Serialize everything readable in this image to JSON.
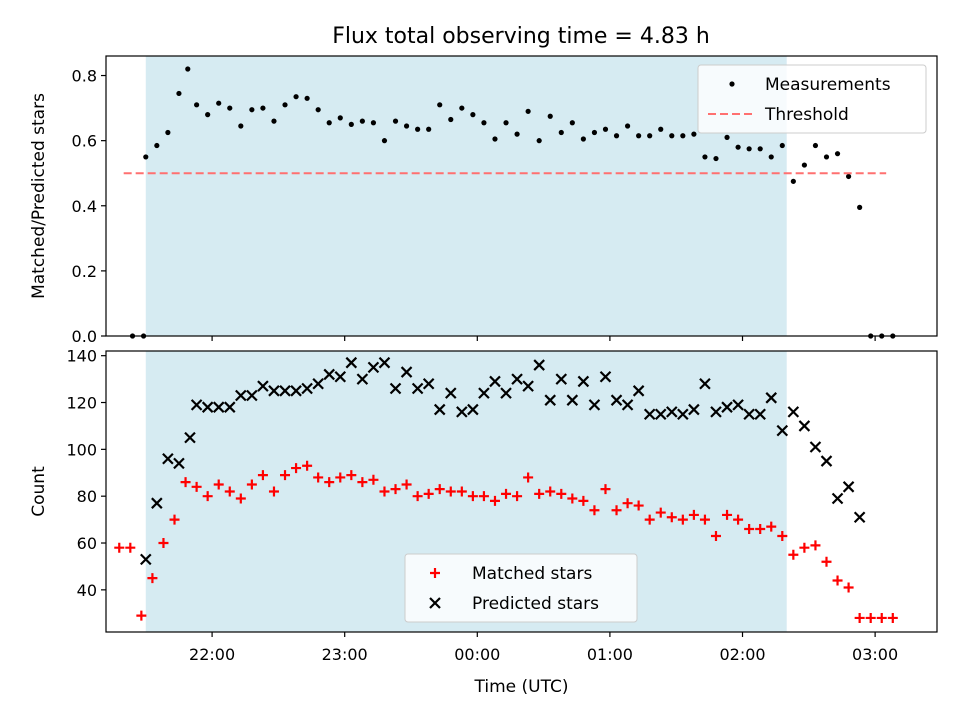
{
  "title": "Flux total observing time = 4.83 h",
  "chart_data": [
    {
      "type": "scatter",
      "panel": "top",
      "ylabel": "Matched/Predicted stars",
      "xlabel": "",
      "x_unit": "time UTC (HH:MM)",
      "xlim": [
        "21:12",
        "03:28"
      ],
      "ylim": [
        0,
        0.86
      ],
      "yticks": [
        0.0,
        0.2,
        0.4,
        0.6,
        0.8
      ],
      "ytick_labels": [
        "0.0",
        "0.2",
        "0.4",
        "0.6",
        "0.8"
      ],
      "xticks": [
        "22:00",
        "23:00",
        "00:00",
        "01:00",
        "02:00",
        "03:00"
      ],
      "shaded_interval": [
        "21:30",
        "02:20"
      ],
      "legend_position": "upper right",
      "series": [
        {
          "name": "Measurements",
          "marker": "dot",
          "color": "#000000",
          "points": [
            [
              "21:24",
              0.0
            ],
            [
              "21:29",
              0.0
            ],
            [
              "21:30",
              0.55
            ],
            [
              "21:35",
              0.585
            ],
            [
              "21:40",
              0.625
            ],
            [
              "21:45",
              0.745
            ],
            [
              "21:49",
              0.82
            ],
            [
              "21:53",
              0.71
            ],
            [
              "21:58",
              0.68
            ],
            [
              "22:03",
              0.715
            ],
            [
              "22:08",
              0.7
            ],
            [
              "22:13",
              0.645
            ],
            [
              "22:18",
              0.695
            ],
            [
              "22:23",
              0.7
            ],
            [
              "22:28",
              0.66
            ],
            [
              "22:33",
              0.71
            ],
            [
              "22:38",
              0.735
            ],
            [
              "22:43",
              0.73
            ],
            [
              "22:48",
              0.695
            ],
            [
              "22:53",
              0.655
            ],
            [
              "22:58",
              0.67
            ],
            [
              "23:03",
              0.65
            ],
            [
              "23:08",
              0.66
            ],
            [
              "23:13",
              0.655
            ],
            [
              "23:18",
              0.6
            ],
            [
              "23:23",
              0.66
            ],
            [
              "23:28",
              0.645
            ],
            [
              "23:33",
              0.635
            ],
            [
              "23:38",
              0.635
            ],
            [
              "23:43",
              0.71
            ],
            [
              "23:48",
              0.665
            ],
            [
              "23:53",
              0.7
            ],
            [
              "23:58",
              0.68
            ],
            [
              "00:03",
              0.655
            ],
            [
              "00:08",
              0.605
            ],
            [
              "00:13",
              0.655
            ],
            [
              "00:18",
              0.62
            ],
            [
              "00:23",
              0.69
            ],
            [
              "00:28",
              0.6
            ],
            [
              "00:33",
              0.675
            ],
            [
              "00:38",
              0.625
            ],
            [
              "00:43",
              0.655
            ],
            [
              "00:48",
              0.605
            ],
            [
              "00:53",
              0.625
            ],
            [
              "00:58",
              0.635
            ],
            [
              "01:03",
              0.615
            ],
            [
              "01:08",
              0.645
            ],
            [
              "01:13",
              0.615
            ],
            [
              "01:18",
              0.615
            ],
            [
              "01:23",
              0.635
            ],
            [
              "01:28",
              0.615
            ],
            [
              "01:33",
              0.615
            ],
            [
              "01:38",
              0.62
            ],
            [
              "01:43",
              0.55
            ],
            [
              "01:48",
              0.545
            ],
            [
              "01:53",
              0.61
            ],
            [
              "01:58",
              0.58
            ],
            [
              "02:03",
              0.575
            ],
            [
              "02:08",
              0.575
            ],
            [
              "02:13",
              0.55
            ],
            [
              "02:18",
              0.585
            ],
            [
              "02:23",
              0.475
            ],
            [
              "02:28",
              0.525
            ],
            [
              "02:33",
              0.585
            ],
            [
              "02:38",
              0.55
            ],
            [
              "02:43",
              0.56
            ],
            [
              "02:48",
              0.49
            ],
            [
              "02:53",
              0.395
            ],
            [
              "02:58",
              0.0
            ],
            [
              "03:03",
              0.0
            ],
            [
              "03:08",
              0.0
            ]
          ]
        },
        {
          "name": "Threshold",
          "style": "dashed",
          "color": "#ff7070",
          "points": [
            [
              "21:20",
              0.5
            ],
            [
              "03:05",
              0.5
            ]
          ]
        }
      ]
    },
    {
      "type": "scatter",
      "panel": "bottom",
      "ylabel": "Count",
      "xlabel": "Time (UTC)",
      "x_unit": "time UTC (HH:MM)",
      "xlim": [
        "21:12",
        "03:28"
      ],
      "ylim": [
        22,
        142
      ],
      "yticks": [
        40,
        60,
        80,
        100,
        120,
        140
      ],
      "ytick_labels": [
        "40",
        "60",
        "80",
        "100",
        "120",
        "140"
      ],
      "xticks": [
        "22:00",
        "23:00",
        "00:00",
        "01:00",
        "02:00",
        "03:00"
      ],
      "xtick_labels": [
        "22:00",
        "23:00",
        "00:00",
        "01:00",
        "02:00",
        "03:00"
      ],
      "shaded_interval": [
        "21:30",
        "02:20"
      ],
      "legend_position": "lower center",
      "series": [
        {
          "name": "Matched stars",
          "marker": "plus",
          "color": "#ff0000",
          "points": [
            [
              "21:18",
              58
            ],
            [
              "21:23",
              58
            ],
            [
              "21:28",
              29
            ],
            [
              "21:33",
              45
            ],
            [
              "21:38",
              60
            ],
            [
              "21:43",
              70
            ],
            [
              "21:48",
              86
            ],
            [
              "21:53",
              84
            ],
            [
              "21:58",
              80
            ],
            [
              "22:03",
              85
            ],
            [
              "22:08",
              82
            ],
            [
              "22:13",
              79
            ],
            [
              "22:18",
              85
            ],
            [
              "22:23",
              89
            ],
            [
              "22:28",
              82
            ],
            [
              "22:33",
              89
            ],
            [
              "22:38",
              92
            ],
            [
              "22:43",
              93
            ],
            [
              "22:48",
              88
            ],
            [
              "22:53",
              86
            ],
            [
              "22:58",
              88
            ],
            [
              "23:03",
              89
            ],
            [
              "23:08",
              86
            ],
            [
              "23:13",
              87
            ],
            [
              "23:18",
              82
            ],
            [
              "23:23",
              83
            ],
            [
              "23:28",
              85
            ],
            [
              "23:33",
              80
            ],
            [
              "23:38",
              81
            ],
            [
              "23:43",
              83
            ],
            [
              "23:48",
              82
            ],
            [
              "23:53",
              82
            ],
            [
              "23:58",
              80
            ],
            [
              "00:03",
              80
            ],
            [
              "00:08",
              78
            ],
            [
              "00:13",
              81
            ],
            [
              "00:18",
              80
            ],
            [
              "00:23",
              88
            ],
            [
              "00:28",
              81
            ],
            [
              "00:33",
              82
            ],
            [
              "00:38",
              81
            ],
            [
              "00:43",
              79
            ],
            [
              "00:48",
              78
            ],
            [
              "00:53",
              74
            ],
            [
              "00:58",
              83
            ],
            [
              "01:03",
              74
            ],
            [
              "01:08",
              77
            ],
            [
              "01:13",
              76
            ],
            [
              "01:18",
              70
            ],
            [
              "01:23",
              73
            ],
            [
              "01:28",
              71
            ],
            [
              "01:33",
              70
            ],
            [
              "01:38",
              72
            ],
            [
              "01:43",
              70
            ],
            [
              "01:48",
              63
            ],
            [
              "01:53",
              72
            ],
            [
              "01:58",
              70
            ],
            [
              "02:03",
              66
            ],
            [
              "02:08",
              66
            ],
            [
              "02:13",
              67
            ],
            [
              "02:18",
              63
            ],
            [
              "02:23",
              55
            ],
            [
              "02:28",
              58
            ],
            [
              "02:33",
              59
            ],
            [
              "02:38",
              52
            ],
            [
              "02:43",
              44
            ],
            [
              "02:48",
              41
            ],
            [
              "02:53",
              28
            ],
            [
              "02:58",
              28
            ],
            [
              "03:03",
              28
            ],
            [
              "03:08",
              28
            ]
          ]
        },
        {
          "name": "Predicted stars",
          "marker": "x",
          "color": "#000000",
          "points": [
            [
              "21:30",
              53
            ],
            [
              "21:35",
              77
            ],
            [
              "21:40",
              96
            ],
            [
              "21:45",
              94
            ],
            [
              "21:50",
              105
            ],
            [
              "21:53",
              119
            ],
            [
              "21:58",
              118
            ],
            [
              "22:03",
              118
            ],
            [
              "22:08",
              118
            ],
            [
              "22:13",
              123
            ],
            [
              "22:18",
              123
            ],
            [
              "22:23",
              127
            ],
            [
              "22:28",
              125
            ],
            [
              "22:33",
              125
            ],
            [
              "22:38",
              125
            ],
            [
              "22:43",
              126
            ],
            [
              "22:48",
              128
            ],
            [
              "22:53",
              132
            ],
            [
              "22:58",
              131
            ],
            [
              "23:03",
              137
            ],
            [
              "23:08",
              130
            ],
            [
              "23:13",
              135
            ],
            [
              "23:18",
              137
            ],
            [
              "23:23",
              126
            ],
            [
              "23:28",
              133
            ],
            [
              "23:33",
              126
            ],
            [
              "23:38",
              128
            ],
            [
              "23:43",
              117
            ],
            [
              "23:48",
              124
            ],
            [
              "23:53",
              116
            ],
            [
              "23:58",
              117
            ],
            [
              "00:03",
              124
            ],
            [
              "00:08",
              129
            ],
            [
              "00:13",
              124
            ],
            [
              "00:18",
              130
            ],
            [
              "00:23",
              127
            ],
            [
              "00:28",
              136
            ],
            [
              "00:33",
              121
            ],
            [
              "00:38",
              130
            ],
            [
              "00:43",
              121
            ],
            [
              "00:48",
              129
            ],
            [
              "00:53",
              119
            ],
            [
              "00:58",
              131
            ],
            [
              "01:03",
              121
            ],
            [
              "01:08",
              119
            ],
            [
              "01:13",
              125
            ],
            [
              "01:18",
              115
            ],
            [
              "01:23",
              115
            ],
            [
              "01:28",
              116
            ],
            [
              "01:33",
              115
            ],
            [
              "01:38",
              117
            ],
            [
              "01:43",
              128
            ],
            [
              "01:48",
              116
            ],
            [
              "01:53",
              118
            ],
            [
              "01:58",
              119
            ],
            [
              "02:03",
              115
            ],
            [
              "02:08",
              115
            ],
            [
              "02:13",
              122
            ],
            [
              "02:18",
              108
            ],
            [
              "02:23",
              116
            ],
            [
              "02:28",
              110
            ],
            [
              "02:33",
              101
            ],
            [
              "02:38",
              95
            ],
            [
              "02:43",
              79
            ],
            [
              "02:48",
              84
            ],
            [
              "02:53",
              71
            ]
          ]
        }
      ]
    }
  ]
}
